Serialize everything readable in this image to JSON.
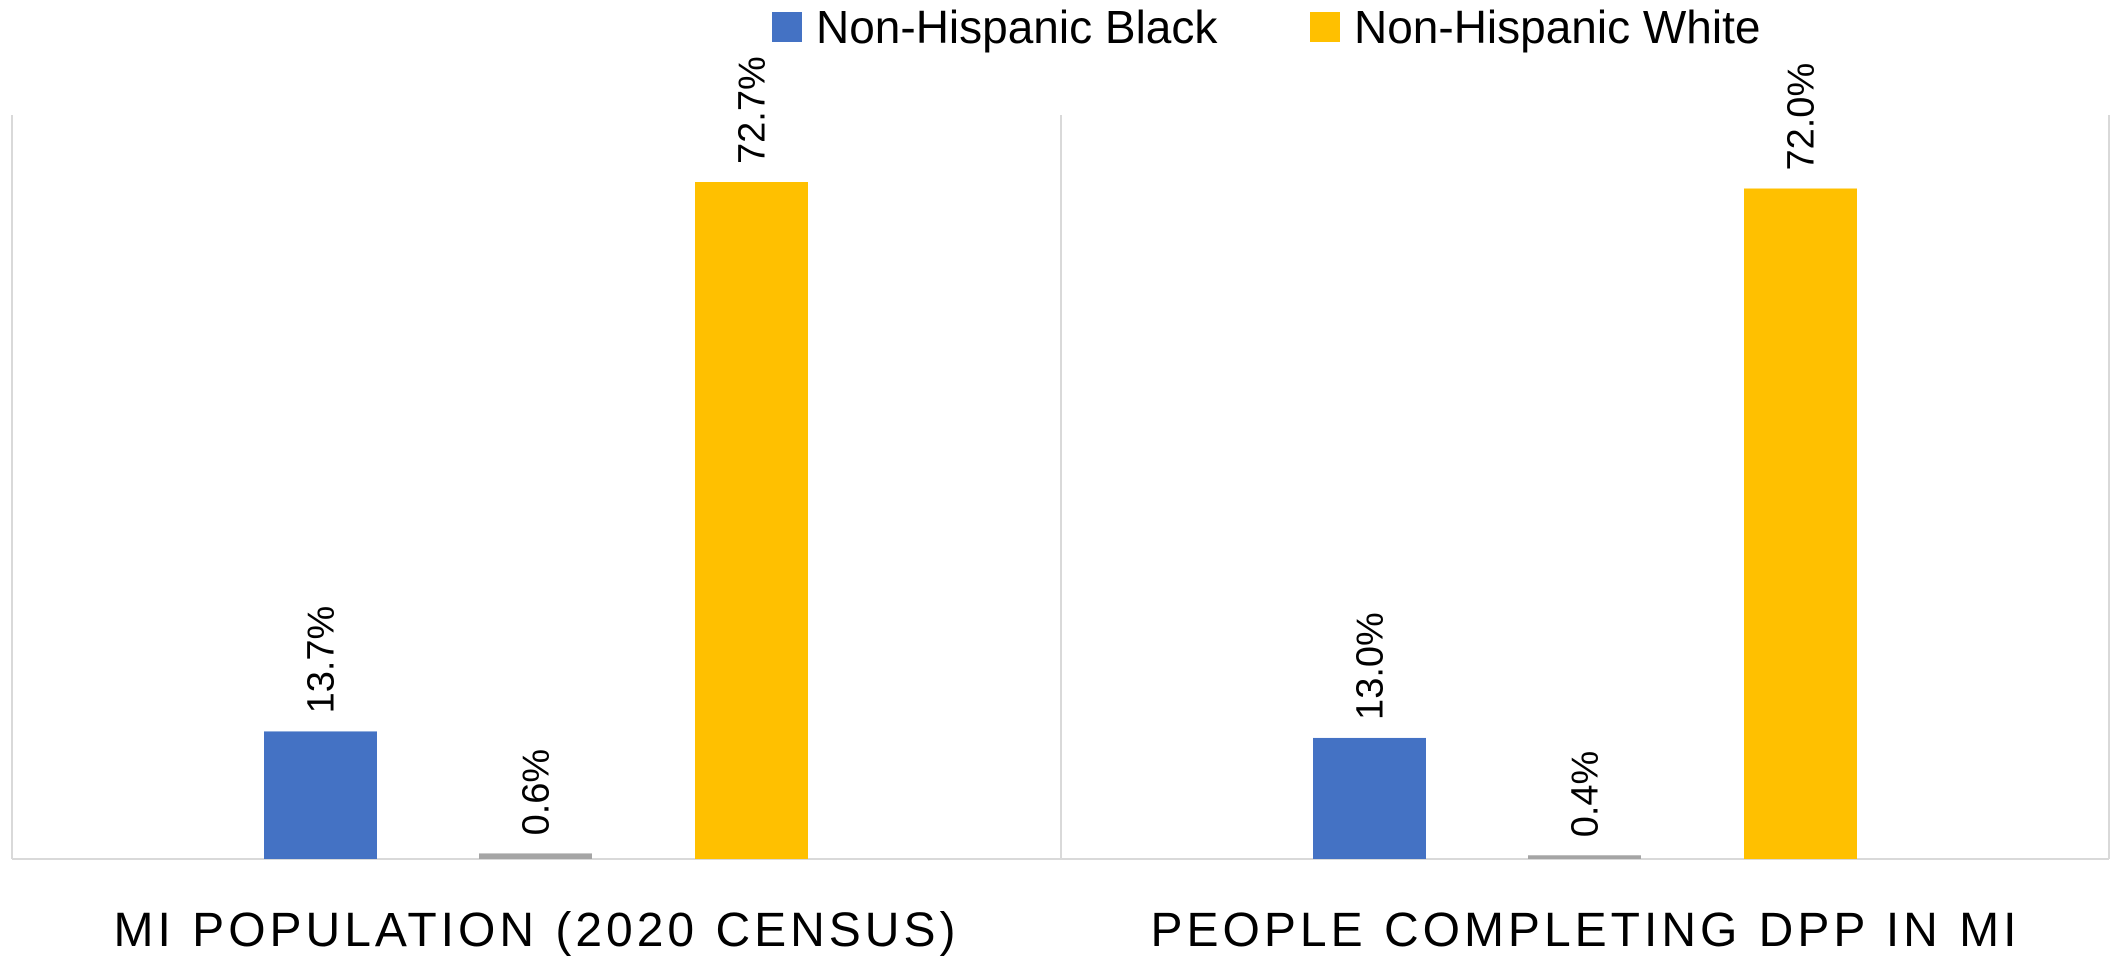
{
  "chart_data": {
    "type": "bar",
    "categories": [
      "MI POPULATION (2020 CENSUS)",
      "PEOPLE COMPLETING DPP IN MI"
    ],
    "series": [
      {
        "name": "Non-Hispanic Black",
        "values": [
          13.7,
          13.0
        ],
        "labels": [
          "13.7%",
          "13.0%"
        ],
        "color": "#4472C4"
      },
      {
        "name": "",
        "values": [
          0.6,
          0.4
        ],
        "labels": [
          "0.6%",
          "0.4%"
        ],
        "color": "#A5A5A5"
      },
      {
        "name": "Non-Hispanic White",
        "values": [
          72.7,
          72.0
        ],
        "labels": [
          "72.7%",
          "72.0%"
        ],
        "color": "#FFC000"
      }
    ],
    "legend": [
      "Non-Hispanic Black",
      "Non-Hispanic White"
    ],
    "legend_position": "top",
    "ylim": [
      0,
      80
    ],
    "grid": false,
    "title": "",
    "xlabel": "",
    "ylabel": ""
  }
}
